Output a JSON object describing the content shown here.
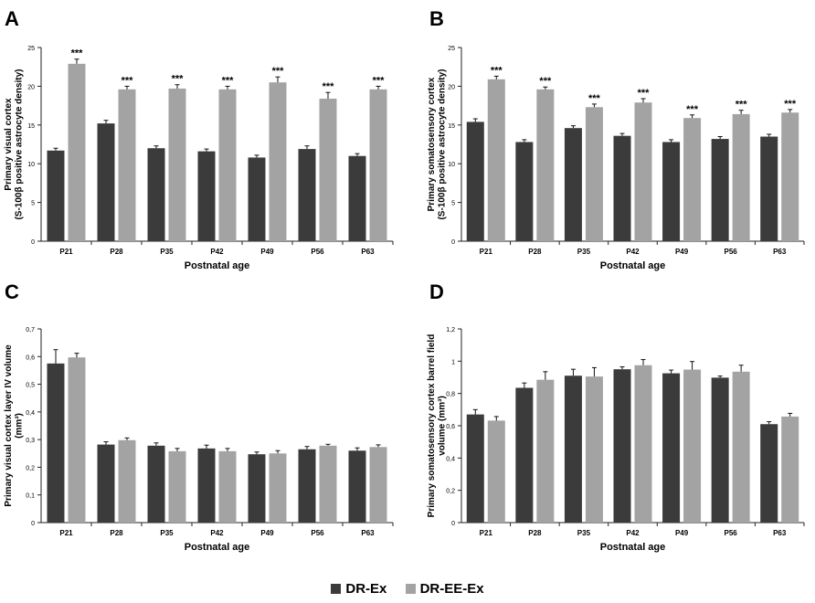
{
  "legend": {
    "series_a": "DR-Ex",
    "series_b": "DR-EE-Ex"
  },
  "colors": {
    "series_a": "#3b3b3b",
    "series_b": "#a3a3a3",
    "axis": "#222222"
  },
  "chart_data": [
    {
      "type": "bar",
      "panel_label": "A",
      "title": "",
      "xlabel": "Postnatal age",
      "ylabel_lines": [
        "Primary visual cortex",
        "(S-100β positive astrocyte density)"
      ],
      "categories": [
        "P21",
        "P28",
        "P35",
        "P42",
        "P49",
        "P56",
        "P63"
      ],
      "ylim": [
        0,
        25
      ],
      "yticks": [
        0,
        5,
        10,
        15,
        20,
        25
      ],
      "ytick_labels": [
        "0",
        "5",
        "10",
        "15",
        "20",
        "25"
      ],
      "series": [
        {
          "name": "DR-Ex",
          "values": [
            11.7,
            15.2,
            12.0,
            11.6,
            10.8,
            11.9,
            11.0
          ],
          "errors": [
            0.3,
            0.4,
            0.3,
            0.3,
            0.3,
            0.4,
            0.3
          ]
        },
        {
          "name": "DR-EE-Ex",
          "values": [
            22.9,
            19.6,
            19.7,
            19.6,
            20.5,
            18.4,
            19.6
          ],
          "errors": [
            0.6,
            0.4,
            0.5,
            0.4,
            0.7,
            0.8,
            0.4
          ]
        }
      ],
      "annotations": [
        "***",
        "***",
        "***",
        "***",
        "***",
        "***",
        "***"
      ]
    },
    {
      "type": "bar",
      "panel_label": "B",
      "title": "",
      "xlabel": "Postnatal age",
      "ylabel_lines": [
        "Primary somatosensory cortex",
        "(S-100β positive astrocyte density)"
      ],
      "categories": [
        "P21",
        "P28",
        "P35",
        "P42",
        "P49",
        "P56",
        "P63"
      ],
      "ylim": [
        0,
        25
      ],
      "yticks": [
        0,
        5,
        10,
        15,
        20,
        25
      ],
      "ytick_labels": [
        "0",
        "5",
        "10",
        "15",
        "20",
        "25"
      ],
      "series": [
        {
          "name": "DR-Ex",
          "values": [
            15.4,
            12.8,
            14.6,
            13.6,
            12.8,
            13.2,
            13.5
          ],
          "errors": [
            0.4,
            0.3,
            0.3,
            0.3,
            0.3,
            0.3,
            0.3
          ]
        },
        {
          "name": "DR-EE-Ex",
          "values": [
            20.9,
            19.6,
            17.3,
            17.9,
            15.9,
            16.4,
            16.6
          ],
          "errors": [
            0.4,
            0.3,
            0.4,
            0.5,
            0.4,
            0.5,
            0.4
          ]
        }
      ],
      "annotations": [
        "***",
        "***",
        "***",
        "***",
        "***",
        "***",
        "***"
      ]
    },
    {
      "type": "bar",
      "panel_label": "C",
      "title": "",
      "xlabel": "Postnatal age",
      "ylabel_lines": [
        "Primary visual cortex layer IV volume",
        "(mm³)"
      ],
      "categories": [
        "P21",
        "P28",
        "P35",
        "P42",
        "P49",
        "P56",
        "P63"
      ],
      "ylim": [
        0,
        0.7
      ],
      "yticks": [
        0,
        0.1,
        0.2,
        0.3,
        0.4,
        0.5,
        0.6,
        0.7
      ],
      "ytick_labels": [
        "0",
        "0,1",
        "0,2",
        "0,3",
        "0,4",
        "0,5",
        "0,6",
        "0,7"
      ],
      "series": [
        {
          "name": "DR-Ex",
          "values": [
            0.575,
            0.282,
            0.278,
            0.268,
            0.247,
            0.265,
            0.26
          ],
          "errors": [
            0.05,
            0.01,
            0.01,
            0.012,
            0.008,
            0.01,
            0.01
          ]
        },
        {
          "name": "DR-EE-Ex",
          "values": [
            0.597,
            0.298,
            0.258,
            0.258,
            0.25,
            0.278,
            0.273
          ],
          "errors": [
            0.015,
            0.008,
            0.01,
            0.01,
            0.01,
            0.005,
            0.008
          ]
        }
      ],
      "annotations": [
        "",
        "",
        "",
        "",
        "",
        "",
        ""
      ]
    },
    {
      "type": "bar",
      "panel_label": "D",
      "title": "",
      "xlabel": "Postnatal age",
      "ylabel_lines": [
        "Primary somatosensory cortex barrel field",
        "volume (mm³)"
      ],
      "categories": [
        "P21",
        "P28",
        "P35",
        "P42",
        "P49",
        "P56",
        "P63"
      ],
      "ylim": [
        0,
        1.2
      ],
      "yticks": [
        0,
        0.2,
        0.4,
        0.6,
        0.8,
        1.0,
        1.2
      ],
      "ytick_labels": [
        "0",
        "0,2",
        "0,4",
        "0,6",
        "0,8",
        "1",
        "1,2"
      ],
      "series": [
        {
          "name": "DR-Ex",
          "values": [
            0.67,
            0.835,
            0.91,
            0.95,
            0.925,
            0.898,
            0.61
          ],
          "errors": [
            0.03,
            0.03,
            0.04,
            0.015,
            0.02,
            0.01,
            0.015
          ]
        },
        {
          "name": "DR-EE-Ex",
          "values": [
            0.632,
            0.885,
            0.905,
            0.975,
            0.948,
            0.935,
            0.657
          ],
          "errors": [
            0.025,
            0.05,
            0.055,
            0.035,
            0.05,
            0.04,
            0.02
          ]
        }
      ],
      "annotations": [
        "",
        "",
        "",
        "",
        "",
        "",
        ""
      ]
    }
  ]
}
